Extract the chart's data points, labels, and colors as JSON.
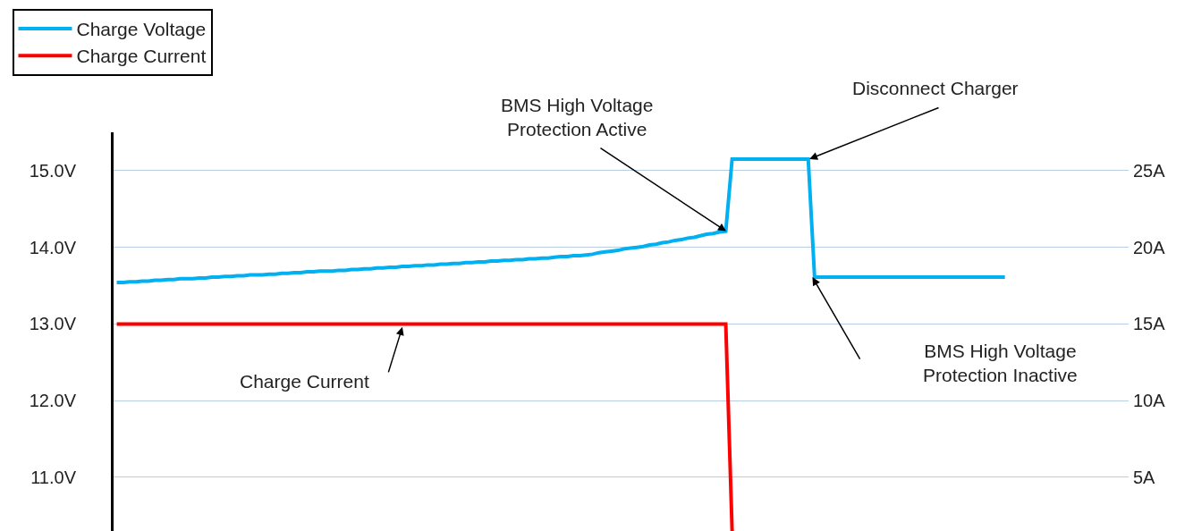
{
  "chart_data": {
    "type": "line",
    "categories": [
      null,
      null,
      null,
      null,
      null,
      null,
      null,
      null,
      null,
      null,
      null,
      null,
      null,
      null,
      null,
      null,
      null,
      null,
      null,
      null,
      null,
      null,
      null,
      null,
      null,
      null,
      null,
      null,
      null,
      null,
      null,
      null,
      null,
      null,
      null,
      null,
      null,
      null,
      null,
      null,
      null,
      null,
      null,
      null,
      null,
      null,
      null,
      null,
      null,
      null,
      null,
      null,
      null,
      null,
      null,
      null,
      null,
      null,
      null,
      null,
      null,
      null,
      null,
      null,
      null,
      null,
      null,
      null,
      null,
      null,
      null,
      null,
      null,
      null,
      null,
      null,
      null,
      null,
      null,
      null,
      null,
      null,
      null,
      null,
      null,
      null,
      null,
      null,
      null,
      null,
      null,
      null,
      null,
      null,
      null,
      null,
      null,
      null,
      null,
      null,
      null,
      null,
      null,
      null,
      null,
      null,
      null,
      null,
      null,
      null,
      null,
      null,
      null,
      null,
      null,
      null,
      null,
      null,
      null,
      null,
      null,
      null,
      null,
      null,
      null,
      null,
      null,
      null,
      null,
      null,
      null,
      null,
      null,
      null,
      null,
      null,
      null,
      null,
      null,
      null,
      null,
      null,
      null,
      null,
      null,
      null,
      null,
      null,
      null,
      null,
      null,
      null,
      null,
      null,
      null,
      null,
      null,
      null,
      null,
      null
    ],
    "ylim": [
      10.3,
      15.5
    ],
    "yticks": [
      {
        "value": 11,
        "label": "11.0V"
      },
      {
        "value": 12,
        "label": "12.0V"
      },
      {
        "value": 13,
        "label": "13.0V"
      },
      {
        "value": 14,
        "label": "14.0V"
      },
      {
        "value": 15,
        "label": "15.0V"
      }
    ],
    "y2lim": [
      1.5,
      27.5
    ],
    "y2ticks": [
      {
        "value": 5,
        "label": "5A"
      },
      {
        "value": 10,
        "label": "10A"
      },
      {
        "value": 15,
        "label": "15A"
      },
      {
        "value": 20,
        "label": "20A"
      },
      {
        "value": 25,
        "label": "25A"
      }
    ],
    "grid": "y",
    "legend": "top left",
    "line_style": "solid",
    "series": [
      {
        "name": "Charge Voltage",
        "color": "#00b0f0",
        "values": [
          13.54,
          13.54,
          13.55,
          13.55,
          13.56,
          13.56,
          13.57,
          13.57,
          13.58,
          13.58,
          13.59,
          13.59,
          13.59,
          13.6,
          13.6,
          13.61,
          13.61,
          13.62,
          13.62,
          13.63,
          13.63,
          13.64,
          13.64,
          13.64,
          13.65,
          13.65,
          13.66,
          13.66,
          13.67,
          13.67,
          13.68,
          13.68,
          13.69,
          13.69,
          13.69,
          13.7,
          13.7,
          13.71,
          13.71,
          13.72,
          13.72,
          13.73,
          13.73,
          13.74,
          13.74,
          13.75,
          13.75,
          13.76,
          13.76,
          13.77,
          13.77,
          13.78,
          13.78,
          13.79,
          13.79,
          13.8,
          13.8,
          13.81,
          13.81,
          13.82,
          13.82,
          13.83,
          13.83,
          13.84,
          13.84,
          13.85,
          13.85,
          13.86,
          13.86,
          13.87,
          13.88,
          13.88,
          13.89,
          13.89,
          13.9,
          13.91,
          13.93,
          13.94,
          13.95,
          13.96,
          13.98,
          13.99,
          14.0,
          14.01,
          14.03,
          14.04,
          14.06,
          14.07,
          14.09,
          14.1,
          14.12,
          14.13,
          14.15,
          14.17,
          14.18,
          14.2,
          14.21,
          15.15,
          15.15,
          15.15,
          15.15,
          15.15,
          15.15,
          15.15,
          15.15,
          15.15,
          15.15,
          15.15,
          15.15,
          15.15,
          13.61,
          13.61,
          13.61,
          13.61,
          13.61,
          13.61,
          13.61,
          13.61,
          13.61,
          13.61,
          13.61,
          13.61,
          13.61,
          13.61,
          13.61,
          13.61,
          13.61,
          13.61,
          13.61,
          13.61,
          13.61,
          13.61,
          13.61,
          13.61,
          13.61,
          13.61,
          13.61,
          13.61,
          13.61,
          13.61,
          13.61,
          null,
          null,
          null,
          null,
          null,
          null,
          null,
          null,
          null,
          null,
          null,
          null,
          null,
          null,
          null,
          null,
          null,
          null,
          null
        ]
      },
      {
        "name": "Charge Current",
        "color": "#ff0000",
        "axis": "y2",
        "values": [
          15,
          15,
          15,
          15,
          15,
          15,
          15,
          15,
          15,
          15,
          15,
          15,
          15,
          15,
          15,
          15,
          15,
          15,
          15,
          15,
          15,
          15,
          15,
          15,
          15,
          15,
          15,
          15,
          15,
          15,
          15,
          15,
          15,
          15,
          15,
          15,
          15,
          15,
          15,
          15,
          15,
          15,
          15,
          15,
          15,
          15,
          15,
          15,
          15,
          15,
          15,
          15,
          15,
          15,
          15,
          15,
          15,
          15,
          15,
          15,
          15,
          15,
          15,
          15,
          15,
          15,
          15,
          15,
          15,
          15,
          15,
          15,
          15,
          15,
          15,
          15,
          15,
          15,
          15,
          15,
          15,
          15,
          15,
          15,
          15,
          15,
          15,
          15,
          15,
          15,
          15,
          15,
          15,
          15,
          15,
          15,
          15,
          1.5,
          null,
          null,
          null,
          null,
          null,
          null,
          null,
          null,
          null,
          null,
          null,
          null,
          null,
          null,
          null,
          null,
          null,
          null,
          null,
          null,
          null,
          null,
          null,
          null,
          null,
          null,
          null,
          null,
          null,
          null,
          null,
          null,
          null,
          null,
          null,
          null,
          null,
          null,
          null,
          null,
          null,
          null,
          null,
          null,
          null,
          null,
          null,
          null,
          null,
          null,
          null,
          null,
          null,
          null,
          null,
          null,
          null,
          null,
          null,
          null,
          null,
          null
        ]
      }
    ],
    "annotations": [
      "BMS High Voltage\nProtection Active",
      "Disconnect Charger",
      "BMS High Voltage\nProtection Inactive",
      "Charge Current"
    ]
  }
}
